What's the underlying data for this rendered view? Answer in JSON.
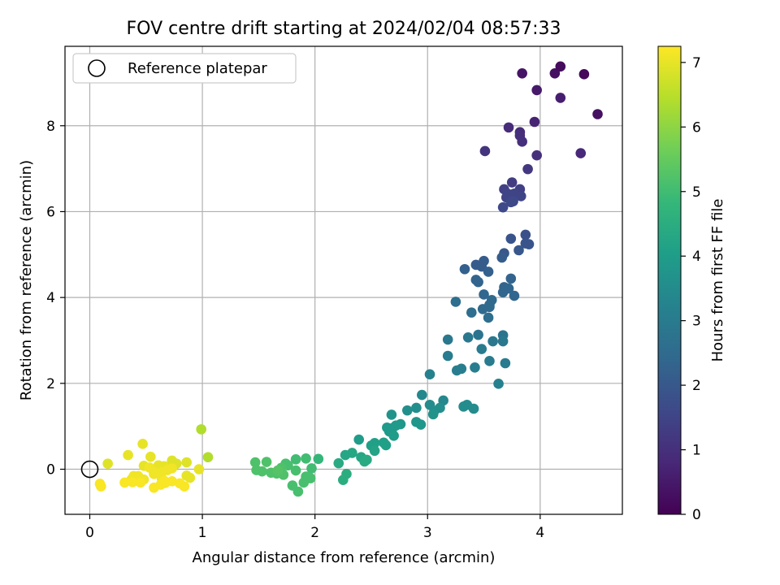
{
  "chart_data": {
    "type": "scatter",
    "title": "FOV centre drift starting at 2024/02/04 08:57:33",
    "xlabel": "Angular distance from reference (arcmin)",
    "ylabel": "Rotation from reference (arcmin)",
    "xlim": [
      -0.22,
      4.73
    ],
    "ylim": [
      -1.05,
      9.85
    ],
    "xticks": [
      0,
      1,
      2,
      3,
      4
    ],
    "yticks": [
      0,
      2,
      4,
      6,
      8
    ],
    "grid": true,
    "legend": {
      "position": "top-left",
      "entries": [
        "Reference platepar"
      ]
    },
    "reference_point": {
      "x": 0,
      "y": 0
    },
    "colorbar": {
      "label": "Hours from first FF file",
      "min": 0,
      "max": 7.25,
      "ticks": [
        0,
        1,
        2,
        3,
        4,
        5,
        6,
        7
      ],
      "colormap": "viridis",
      "stops": [
        "#440154",
        "#482878",
        "#3e4989",
        "#31688e",
        "#26828e",
        "#1f9e89",
        "#35b779",
        "#6ece58",
        "#b5de2b",
        "#fde725"
      ]
    },
    "series": [
      {
        "points": [
          {
            "x": 3.84,
            "y": 9.22,
            "t": 0.4
          },
          {
            "x": 4.13,
            "y": 9.22,
            "t": 0.3
          },
          {
            "x": 4.18,
            "y": 9.38,
            "t": 0.2
          },
          {
            "x": 4.39,
            "y": 9.2,
            "t": 0.15
          },
          {
            "x": 3.97,
            "y": 8.83,
            "t": 0.5
          },
          {
            "x": 4.18,
            "y": 8.65,
            "t": 0.6
          },
          {
            "x": 4.51,
            "y": 8.27,
            "t": 0.3
          },
          {
            "x": 3.95,
            "y": 8.09,
            "t": 0.7
          },
          {
            "x": 3.72,
            "y": 7.96,
            "t": 0.9
          },
          {
            "x": 3.82,
            "y": 7.85,
            "t": 0.9
          },
          {
            "x": 3.82,
            "y": 7.77,
            "t": 1.0
          },
          {
            "x": 3.84,
            "y": 7.63,
            "t": 1.0
          },
          {
            "x": 3.51,
            "y": 7.41,
            "t": 1.1
          },
          {
            "x": 4.36,
            "y": 7.36,
            "t": 0.8
          },
          {
            "x": 3.97,
            "y": 7.31,
            "t": 1.0
          },
          {
            "x": 3.89,
            "y": 6.99,
            "t": 1.2
          },
          {
            "x": 3.75,
            "y": 6.68,
            "t": 1.3
          },
          {
            "x": 3.68,
            "y": 6.52,
            "t": 1.4
          },
          {
            "x": 3.82,
            "y": 6.52,
            "t": 1.4
          },
          {
            "x": 3.71,
            "y": 6.42,
            "t": 1.5
          },
          {
            "x": 3.77,
            "y": 6.42,
            "t": 1.5
          },
          {
            "x": 3.7,
            "y": 6.33,
            "t": 1.5
          },
          {
            "x": 3.83,
            "y": 6.36,
            "t": 1.5
          },
          {
            "x": 3.76,
            "y": 6.24,
            "t": 1.6
          },
          {
            "x": 3.74,
            "y": 6.22,
            "t": 1.6
          },
          {
            "x": 3.67,
            "y": 6.1,
            "t": 1.6
          },
          {
            "x": 3.87,
            "y": 5.46,
            "t": 1.8
          },
          {
            "x": 3.74,
            "y": 5.37,
            "t": 1.9
          },
          {
            "x": 3.87,
            "y": 5.26,
            "t": 1.9
          },
          {
            "x": 3.9,
            "y": 5.24,
            "t": 1.9
          },
          {
            "x": 3.81,
            "y": 5.1,
            "t": 2.0
          },
          {
            "x": 3.68,
            "y": 5.03,
            "t": 2.0
          },
          {
            "x": 3.66,
            "y": 4.93,
            "t": 2.1
          },
          {
            "x": 3.5,
            "y": 4.85,
            "t": 2.1
          },
          {
            "x": 3.43,
            "y": 4.76,
            "t": 2.1
          },
          {
            "x": 3.48,
            "y": 4.72,
            "t": 2.1
          },
          {
            "x": 3.33,
            "y": 4.66,
            "t": 2.2
          },
          {
            "x": 3.54,
            "y": 4.6,
            "t": 2.2
          },
          {
            "x": 3.74,
            "y": 4.44,
            "t": 2.3
          },
          {
            "x": 3.43,
            "y": 4.41,
            "t": 2.3
          },
          {
            "x": 3.45,
            "y": 4.36,
            "t": 2.3
          },
          {
            "x": 3.68,
            "y": 4.24,
            "t": 2.3
          },
          {
            "x": 3.72,
            "y": 4.21,
            "t": 2.4
          },
          {
            "x": 3.67,
            "y": 4.12,
            "t": 2.4
          },
          {
            "x": 3.5,
            "y": 4.07,
            "t": 2.4
          },
          {
            "x": 3.77,
            "y": 4.04,
            "t": 2.4
          },
          {
            "x": 3.57,
            "y": 3.94,
            "t": 2.5
          },
          {
            "x": 3.55,
            "y": 3.83,
            "t": 2.5
          },
          {
            "x": 3.55,
            "y": 3.78,
            "t": 2.5
          },
          {
            "x": 3.49,
            "y": 3.73,
            "t": 2.5
          },
          {
            "x": 3.39,
            "y": 3.65,
            "t": 2.6
          },
          {
            "x": 3.54,
            "y": 3.53,
            "t": 2.6
          },
          {
            "x": 3.25,
            "y": 3.9,
            "t": 2.6
          },
          {
            "x": 3.67,
            "y": 3.12,
            "t": 2.8
          },
          {
            "x": 3.45,
            "y": 3.13,
            "t": 2.8
          },
          {
            "x": 3.36,
            "y": 3.07,
            "t": 2.9
          },
          {
            "x": 3.18,
            "y": 3.02,
            "t": 2.9
          },
          {
            "x": 3.67,
            "y": 2.98,
            "t": 2.9
          },
          {
            "x": 3.58,
            "y": 2.98,
            "t": 2.9
          },
          {
            "x": 3.48,
            "y": 2.8,
            "t": 3.0
          },
          {
            "x": 3.18,
            "y": 2.64,
            "t": 3.0
          },
          {
            "x": 3.55,
            "y": 2.52,
            "t": 3.0
          },
          {
            "x": 3.69,
            "y": 2.47,
            "t": 3.0
          },
          {
            "x": 3.42,
            "y": 2.37,
            "t": 3.1
          },
          {
            "x": 3.3,
            "y": 2.34,
            "t": 3.1
          },
          {
            "x": 3.26,
            "y": 2.3,
            "t": 3.1
          },
          {
            "x": 3.02,
            "y": 2.21,
            "t": 3.2
          },
          {
            "x": 3.63,
            "y": 1.99,
            "t": 3.2
          },
          {
            "x": 2.95,
            "y": 1.73,
            "t": 3.4
          },
          {
            "x": 3.14,
            "y": 1.6,
            "t": 3.4
          },
          {
            "x": 3.35,
            "y": 1.5,
            "t": 3.5
          },
          {
            "x": 3.02,
            "y": 1.5,
            "t": 3.5
          },
          {
            "x": 3.32,
            "y": 1.46,
            "t": 3.5
          },
          {
            "x": 3.41,
            "y": 1.41,
            "t": 3.5
          },
          {
            "x": 2.9,
            "y": 1.43,
            "t": 3.6
          },
          {
            "x": 3.11,
            "y": 1.43,
            "t": 3.6
          },
          {
            "x": 3.06,
            "y": 1.36,
            "t": 3.6
          },
          {
            "x": 2.82,
            "y": 1.37,
            "t": 3.6
          },
          {
            "x": 2.68,
            "y": 1.27,
            "t": 3.7
          },
          {
            "x": 3.05,
            "y": 1.28,
            "t": 3.7
          },
          {
            "x": 2.9,
            "y": 1.1,
            "t": 3.8
          },
          {
            "x": 2.94,
            "y": 1.04,
            "t": 3.8
          },
          {
            "x": 2.76,
            "y": 1.05,
            "t": 3.8
          },
          {
            "x": 2.72,
            "y": 1.02,
            "t": 3.9
          },
          {
            "x": 2.64,
            "y": 0.97,
            "t": 3.9
          },
          {
            "x": 2.69,
            "y": 0.96,
            "t": 3.9
          },
          {
            "x": 2.66,
            "y": 0.88,
            "t": 3.9
          },
          {
            "x": 2.7,
            "y": 0.78,
            "t": 4.0
          },
          {
            "x": 2.39,
            "y": 0.69,
            "t": 4.0
          },
          {
            "x": 2.53,
            "y": 0.61,
            "t": 4.1
          },
          {
            "x": 2.61,
            "y": 0.62,
            "t": 4.1
          },
          {
            "x": 2.5,
            "y": 0.55,
            "t": 4.1
          },
          {
            "x": 2.63,
            "y": 0.56,
            "t": 4.1
          },
          {
            "x": 2.53,
            "y": 0.43,
            "t": 4.2
          },
          {
            "x": 2.33,
            "y": 0.38,
            "t": 4.3
          },
          {
            "x": 2.27,
            "y": 0.33,
            "t": 4.3
          },
          {
            "x": 2.41,
            "y": 0.28,
            "t": 4.3
          },
          {
            "x": 2.46,
            "y": 0.22,
            "t": 4.4
          },
          {
            "x": 2.44,
            "y": 0.18,
            "t": 4.4
          },
          {
            "x": 2.21,
            "y": 0.14,
            "t": 4.4
          },
          {
            "x": 2.28,
            "y": -0.11,
            "t": 4.5
          },
          {
            "x": 2.25,
            "y": -0.25,
            "t": 4.5
          },
          {
            "x": 2.03,
            "y": 0.24,
            "t": 4.8
          },
          {
            "x": 1.92,
            "y": 0.25,
            "t": 5.0
          },
          {
            "x": 1.83,
            "y": 0.23,
            "t": 5.0
          },
          {
            "x": 1.47,
            "y": 0.16,
            "t": 5.2
          },
          {
            "x": 1.57,
            "y": 0.17,
            "t": 5.2
          },
          {
            "x": 1.74,
            "y": 0.13,
            "t": 5.1
          },
          {
            "x": 1.76,
            "y": 0.09,
            "t": 5.1
          },
          {
            "x": 1.7,
            "y": 0.03,
            "t": 5.2
          },
          {
            "x": 1.97,
            "y": 0.02,
            "t": 5.0
          },
          {
            "x": 1.53,
            "y": -0.05,
            "t": 5.2
          },
          {
            "x": 1.48,
            "y": -0.02,
            "t": 5.2
          },
          {
            "x": 1.61,
            "y": -0.08,
            "t": 5.2
          },
          {
            "x": 1.66,
            "y": -0.1,
            "t": 5.2
          },
          {
            "x": 1.72,
            "y": -0.13,
            "t": 5.2
          },
          {
            "x": 1.83,
            "y": -0.03,
            "t": 5.1
          },
          {
            "x": 1.92,
            "y": -0.17,
            "t": 5.1
          },
          {
            "x": 1.96,
            "y": -0.21,
            "t": 5.1
          },
          {
            "x": 1.9,
            "y": -0.31,
            "t": 5.1
          },
          {
            "x": 1.8,
            "y": -0.38,
            "t": 5.1
          },
          {
            "x": 1.85,
            "y": -0.52,
            "t": 5.1
          },
          {
            "x": 1.67,
            "y": -0.03,
            "t": 5.3
          },
          {
            "x": 0.99,
            "y": 0.93,
            "t": 6.4
          },
          {
            "x": 1.05,
            "y": 0.28,
            "t": 6.4
          },
          {
            "x": 0.47,
            "y": 0.59,
            "t": 7.0
          },
          {
            "x": 0.34,
            "y": 0.33,
            "t": 7.0
          },
          {
            "x": 0.54,
            "y": 0.29,
            "t": 7.0
          },
          {
            "x": 0.73,
            "y": 0.2,
            "t": 6.9
          },
          {
            "x": 0.86,
            "y": 0.16,
            "t": 6.9
          },
          {
            "x": 0.77,
            "y": 0.13,
            "t": 6.9
          },
          {
            "x": 0.16,
            "y": 0.13,
            "t": 6.9
          },
          {
            "x": 0.61,
            "y": 0.09,
            "t": 7.0
          },
          {
            "x": 0.48,
            "y": 0.08,
            "t": 7.0
          },
          {
            "x": 0.53,
            "y": 0.04,
            "t": 7.1
          },
          {
            "x": 0.66,
            "y": 0.07,
            "t": 7.0
          },
          {
            "x": 0.97,
            "y": 0.0,
            "t": 7.0
          },
          {
            "x": 0.73,
            "y": 0.02,
            "t": 7.1
          },
          {
            "x": 0.69,
            "y": -0.02,
            "t": 7.1
          },
          {
            "x": 0.57,
            "y": -0.06,
            "t": 7.1
          },
          {
            "x": 0.64,
            "y": -0.07,
            "t": 7.1
          },
          {
            "x": 0.57,
            "y": -0.11,
            "t": 7.1
          },
          {
            "x": 0.39,
            "y": -0.16,
            "t": 7.1
          },
          {
            "x": 0.43,
            "y": -0.16,
            "t": 7.1
          },
          {
            "x": 0.86,
            "y": -0.15,
            "t": 7.0
          },
          {
            "x": 0.89,
            "y": -0.2,
            "t": 7.0
          },
          {
            "x": 0.64,
            "y": -0.22,
            "t": 7.1
          },
          {
            "x": 0.37,
            "y": -0.24,
            "t": 7.1
          },
          {
            "x": 0.48,
            "y": -0.24,
            "t": 7.1
          },
          {
            "x": 0.66,
            "y": -0.27,
            "t": 7.2
          },
          {
            "x": 0.73,
            "y": -0.28,
            "t": 7.2
          },
          {
            "x": 0.38,
            "y": -0.3,
            "t": 7.2
          },
          {
            "x": 0.45,
            "y": -0.31,
            "t": 7.2
          },
          {
            "x": 0.31,
            "y": -0.31,
            "t": 7.2
          },
          {
            "x": 0.67,
            "y": -0.32,
            "t": 7.2
          },
          {
            "x": 0.8,
            "y": -0.33,
            "t": 7.2
          },
          {
            "x": 0.09,
            "y": -0.34,
            "t": 7.2
          },
          {
            "x": 0.63,
            "y": -0.36,
            "t": 7.2
          },
          {
            "x": 0.1,
            "y": -0.4,
            "t": 7.2
          },
          {
            "x": 0.84,
            "y": -0.4,
            "t": 7.2
          },
          {
            "x": 0.57,
            "y": -0.43,
            "t": 7.2
          }
        ]
      }
    ]
  }
}
